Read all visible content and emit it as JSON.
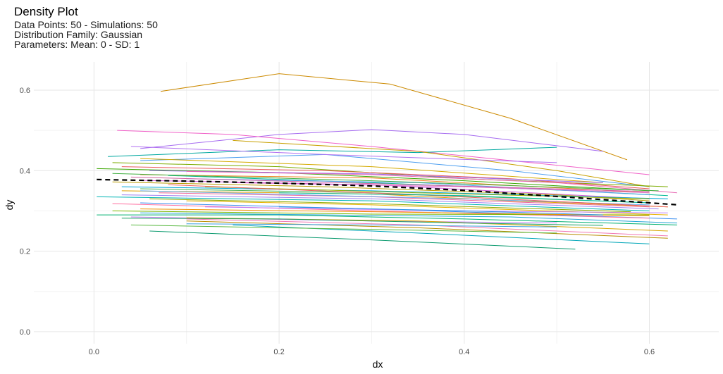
{
  "chart_data": {
    "type": "line",
    "title": "Density Plot",
    "subtitle_lines": [
      "Data Points: 50 - Simulations: 50",
      "Distribution Family: Gaussian",
      "Parameters: Mean: 0 - SD: 1"
    ],
    "xlabel": "dx",
    "ylabel": "dy",
    "xlim": [
      -0.065,
      0.675
    ],
    "ylim": [
      -0.03,
      0.67
    ],
    "x_ticks": [
      "0.0",
      "0.2",
      "0.4",
      "0.6"
    ],
    "y_ticks": [
      "0.0",
      "0.2",
      "0.4",
      "0.6"
    ],
    "grid": true,
    "legend": "none",
    "reference_series": {
      "style": "dashed-black",
      "x": [
        0.003,
        0.1,
        0.2,
        0.3,
        0.4,
        0.5,
        0.6,
        0.632
      ],
      "y": [
        0.378,
        0.374,
        0.369,
        0.362,
        0.351,
        0.336,
        0.32,
        0.315
      ]
    },
    "series": [
      {
        "color": "#cc8a00",
        "x": [
          0.072,
          0.2,
          0.32,
          0.45,
          0.576
        ],
        "y": [
          0.597,
          0.641,
          0.615,
          0.53,
          0.427
        ]
      },
      {
        "color": "#a66cf0",
        "x": [
          0.05,
          0.2,
          0.3,
          0.4,
          0.55
        ],
        "y": [
          0.455,
          0.49,
          0.502,
          0.49,
          0.448
        ]
      },
      {
        "color": "#f060c8",
        "x": [
          0.025,
          0.15,
          0.3,
          0.45,
          0.6
        ],
        "y": [
          0.5,
          0.49,
          0.46,
          0.425,
          0.39
        ]
      },
      {
        "color": "#00a8a0",
        "x": [
          0.015,
          0.2,
          0.35,
          0.5
        ],
        "y": [
          0.435,
          0.452,
          0.445,
          0.458
        ]
      },
      {
        "color": "#4c9ef0",
        "x": [
          0.05,
          0.25,
          0.45,
          0.6
        ],
        "y": [
          0.425,
          0.44,
          0.4,
          0.36
        ]
      },
      {
        "color": "#c8a000",
        "x": [
          0.15,
          0.35,
          0.5,
          0.6
        ],
        "y": [
          0.475,
          0.448,
          0.4,
          0.36
        ]
      },
      {
        "color": "#b070f0",
        "x": [
          0.04,
          0.25,
          0.5
        ],
        "y": [
          0.46,
          0.44,
          0.42
        ]
      },
      {
        "color": "#7bab00",
        "x": [
          0.02,
          0.2,
          0.4,
          0.62
        ],
        "y": [
          0.42,
          0.41,
          0.38,
          0.36
        ]
      },
      {
        "color": "#d4aa00",
        "x": [
          0.05,
          0.3,
          0.55
        ],
        "y": [
          0.43,
          0.41,
          0.37
        ]
      },
      {
        "color": "#e85a5a",
        "x": [
          0.03,
          0.25,
          0.45,
          0.6
        ],
        "y": [
          0.41,
          0.4,
          0.38,
          0.355
        ]
      },
      {
        "color": "#3aa600",
        "x": [
          0.003,
          0.2,
          0.4,
          0.6
        ],
        "y": [
          0.405,
          0.395,
          0.375,
          0.35
        ]
      },
      {
        "color": "#9a6af0",
        "x": [
          0.06,
          0.3,
          0.55
        ],
        "y": [
          0.4,
          0.392,
          0.37
        ]
      },
      {
        "color": "#e86ab4",
        "x": [
          0.1,
          0.3,
          0.5,
          0.63
        ],
        "y": [
          0.398,
          0.39,
          0.37,
          0.345
        ]
      },
      {
        "color": "#f08020",
        "x": [
          0.05,
          0.3,
          0.6
        ],
        "y": [
          0.39,
          0.382,
          0.345
        ]
      },
      {
        "color": "#00b894",
        "x": [
          0.08,
          0.3,
          0.52,
          0.62
        ],
        "y": [
          0.388,
          0.37,
          0.35,
          0.338
        ]
      },
      {
        "color": "#5aa4ec",
        "x": [
          0.1,
          0.35,
          0.6
        ],
        "y": [
          0.38,
          0.37,
          0.34
        ]
      },
      {
        "color": "#d05ad8",
        "x": [
          0.05,
          0.3,
          0.6
        ],
        "y": [
          0.376,
          0.365,
          0.33
        ]
      },
      {
        "color": "#b89a00",
        "x": [
          0.02,
          0.25,
          0.5,
          0.6
        ],
        "y": [
          0.372,
          0.36,
          0.34,
          0.325
        ]
      },
      {
        "color": "#00a6d6",
        "x": [
          0.03,
          0.3,
          0.62
        ],
        "y": [
          0.36,
          0.35,
          0.33
        ]
      },
      {
        "color": "#e0a000",
        "x": [
          0.03,
          0.3,
          0.45,
          0.62
        ],
        "y": [
          0.35,
          0.342,
          0.325,
          0.31
        ]
      },
      {
        "color": "#48b050",
        "x": [
          0.05,
          0.3,
          0.6
        ],
        "y": [
          0.355,
          0.345,
          0.32
        ]
      },
      {
        "color": "#f06a9a",
        "x": [
          0.07,
          0.3,
          0.6
        ],
        "y": [
          0.345,
          0.335,
          0.31
        ]
      },
      {
        "color": "#a080f0",
        "x": [
          0.03,
          0.3,
          0.61
        ],
        "y": [
          0.34,
          0.33,
          0.305
        ]
      },
      {
        "color": "#00b4b4",
        "x": [
          0.003,
          0.3,
          0.6
        ],
        "y": [
          0.335,
          0.325,
          0.3
        ]
      },
      {
        "color": "#8ca800",
        "x": [
          0.06,
          0.3,
          0.58
        ],
        "y": [
          0.33,
          0.318,
          0.298
        ]
      },
      {
        "color": "#e8b400",
        "x": [
          0.1,
          0.3,
          0.62
        ],
        "y": [
          0.325,
          0.315,
          0.29
        ]
      },
      {
        "color": "#3c8ff0",
        "x": [
          0.05,
          0.3,
          0.63
        ],
        "y": [
          0.32,
          0.305,
          0.28
        ]
      },
      {
        "color": "#ff6fa0",
        "x": [
          0.02,
          0.3,
          0.6
        ],
        "y": [
          0.318,
          0.3,
          0.282
        ]
      },
      {
        "color": "#7ab800",
        "x": [
          0.02,
          0.3,
          0.6
        ],
        "y": [
          0.3,
          0.292,
          0.29
        ]
      },
      {
        "color": "#00b070",
        "x": [
          0.003,
          0.2,
          0.4,
          0.63
        ],
        "y": [
          0.29,
          0.29,
          0.28,
          0.265
        ]
      },
      {
        "color": "#24a4d6",
        "x": [
          0.05,
          0.25,
          0.45,
          0.63
        ],
        "y": [
          0.295,
          0.29,
          0.285,
          0.27
        ]
      },
      {
        "color": "#c97ef5",
        "x": [
          0.04,
          0.3,
          0.5
        ],
        "y": [
          0.285,
          0.275,
          0.27
        ]
      },
      {
        "color": "#d8a400",
        "x": [
          0.1,
          0.35,
          0.62
        ],
        "y": [
          0.283,
          0.275,
          0.25
        ]
      },
      {
        "color": "#18a060",
        "x": [
          0.03,
          0.2,
          0.4,
          0.55
        ],
        "y": [
          0.282,
          0.28,
          0.27,
          0.264
        ]
      },
      {
        "color": "#f078b4",
        "x": [
          0.1,
          0.35,
          0.62
        ],
        "y": [
          0.28,
          0.265,
          0.238
        ]
      },
      {
        "color": "#b88c00",
        "x": [
          0.1,
          0.35,
          0.62
        ],
        "y": [
          0.275,
          0.258,
          0.232
        ]
      },
      {
        "color": "#3ca0e0",
        "x": [
          0.1,
          0.3,
          0.5
        ],
        "y": [
          0.268,
          0.265,
          0.26
        ]
      },
      {
        "color": "#00a6b8",
        "x": [
          0.15,
          0.35,
          0.6
        ],
        "y": [
          0.265,
          0.245,
          0.218
        ]
      },
      {
        "color": "#58b840",
        "x": [
          0.04,
          0.2,
          0.35,
          0.5
        ],
        "y": [
          0.265,
          0.258,
          0.252,
          0.245
        ]
      },
      {
        "color": "#0a9a6e",
        "x": [
          0.06,
          0.3,
          0.52
        ],
        "y": [
          0.25,
          0.228,
          0.205
        ]
      },
      {
        "color": "#e070d0",
        "x": [
          0.15,
          0.4,
          0.6
        ],
        "y": [
          0.37,
          0.36,
          0.345
        ]
      },
      {
        "color": "#a0b000",
        "x": [
          0.12,
          0.35,
          0.6
        ],
        "y": [
          0.36,
          0.345,
          0.33
        ]
      },
      {
        "color": "#60a8f0",
        "x": [
          0.05,
          0.4,
          0.6
        ],
        "y": [
          0.35,
          0.33,
          0.315
        ]
      },
      {
        "color": "#ee6060",
        "x": [
          0.08,
          0.35,
          0.62
        ],
        "y": [
          0.365,
          0.34,
          0.31
        ]
      },
      {
        "color": "#00bca0",
        "x": [
          0.2,
          0.4,
          0.6
        ],
        "y": [
          0.345,
          0.338,
          0.32
        ]
      },
      {
        "color": "#c080f8",
        "x": [
          0.12,
          0.4,
          0.62
        ],
        "y": [
          0.31,
          0.3,
          0.295
        ]
      },
      {
        "color": "#f09000",
        "x": [
          0.05,
          0.3,
          0.6
        ],
        "y": [
          0.305,
          0.298,
          0.288
        ]
      },
      {
        "color": "#2a94e8",
        "x": [
          0.2,
          0.4,
          0.55
        ],
        "y": [
          0.31,
          0.3,
          0.29
        ]
      },
      {
        "color": "#44b044",
        "x": [
          0.02,
          0.3,
          0.61
        ],
        "y": [
          0.393,
          0.375,
          0.35
        ]
      },
      {
        "color": "#d060a0",
        "x": [
          0.04,
          0.3,
          0.6
        ],
        "y": [
          0.384,
          0.368,
          0.348
        ]
      }
    ]
  }
}
